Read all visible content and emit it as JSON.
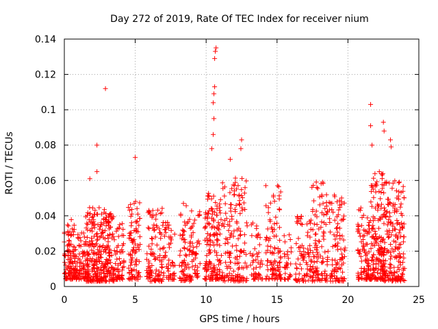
{
  "chart_data": {
    "type": "scatter",
    "title": "Day 272 of 2019, Rate Of TEC Index for receiver nium",
    "xlabel": "GPS time / hours",
    "ylabel": "ROTI / TECUs",
    "xlim": [
      0,
      25
    ],
    "ylim": [
      0,
      0.14
    ],
    "xticks": [
      0,
      5,
      10,
      15,
      20,
      25
    ],
    "xtick_labels": [
      "0",
      "5",
      "10",
      "15",
      "20",
      "25"
    ],
    "yticks": [
      0,
      0.02,
      0.04,
      0.06,
      0.08,
      0.1,
      0.12,
      0.14
    ],
    "ytick_labels": [
      "0",
      "0.02",
      "0.04",
      "0.06",
      "0.08",
      "0.1",
      "0.12",
      "0.14"
    ],
    "grid": true,
    "marker": "+",
    "color": "#ff0000",
    "series": [
      {
        "name": "ROTI",
        "clusters": [
          {
            "x_range": [
              0.0,
              0.8
            ],
            "y_range": [
              0.004,
              0.038
            ],
            "count": 110
          },
          {
            "x_range": [
              0.8,
              1.5
            ],
            "y_range": [
              0.004,
              0.032
            ],
            "count": 70
          },
          {
            "x_range": [
              1.5,
              2.6
            ],
            "y_range": [
              0.003,
              0.045
            ],
            "count": 180
          },
          {
            "x_range": [
              2.6,
              3.5
            ],
            "y_range": [
              0.003,
              0.044
            ],
            "count": 140
          },
          {
            "x_range": [
              3.5,
              4.2
            ],
            "y_range": [
              0.004,
              0.036
            ],
            "count": 60
          },
          {
            "x_range": [
              4.5,
              5.4
            ],
            "y_range": [
              0.004,
              0.05
            ],
            "count": 90
          },
          {
            "x_range": [
              5.8,
              6.9
            ],
            "y_range": [
              0.003,
              0.045
            ],
            "count": 100
          },
          {
            "x_range": [
              6.9,
              7.8
            ],
            "y_range": [
              0.004,
              0.038
            ],
            "count": 60
          },
          {
            "x_range": [
              8.1,
              9.0
            ],
            "y_range": [
              0.003,
              0.048
            ],
            "count": 80
          },
          {
            "x_range": [
              9.0,
              9.6
            ],
            "y_range": [
              0.005,
              0.045
            ],
            "count": 40
          },
          {
            "x_range": [
              9.9,
              11.1
            ],
            "y_range": [
              0.004,
              0.055
            ],
            "count": 150
          },
          {
            "x_range": [
              11.1,
              12.9
            ],
            "y_range": [
              0.003,
              0.062
            ],
            "count": 160
          },
          {
            "x_range": [
              13.1,
              14.0
            ],
            "y_range": [
              0.004,
              0.036
            ],
            "count": 50
          },
          {
            "x_range": [
              14.2,
              15.3
            ],
            "y_range": [
              0.004,
              0.058
            ],
            "count": 100
          },
          {
            "x_range": [
              15.5,
              16.0
            ],
            "y_range": [
              0.004,
              0.03
            ],
            "count": 30
          },
          {
            "x_range": [
              16.3,
              17.4
            ],
            "y_range": [
              0.003,
              0.04
            ],
            "count": 80
          },
          {
            "x_range": [
              17.4,
              18.5
            ],
            "y_range": [
              0.003,
              0.06
            ],
            "count": 100
          },
          {
            "x_range": [
              18.5,
              19.8
            ],
            "y_range": [
              0.003,
              0.055
            ],
            "count": 110
          },
          {
            "x_range": [
              20.7,
              21.6
            ],
            "y_range": [
              0.004,
              0.045
            ],
            "count": 100
          },
          {
            "x_range": [
              21.6,
              22.5
            ],
            "y_range": [
              0.004,
              0.065
            ],
            "count": 160
          },
          {
            "x_range": [
              22.5,
              24.0
            ],
            "y_range": [
              0.003,
              0.06
            ],
            "count": 200
          }
        ],
        "notable_points": [
          {
            "x": 2.9,
            "y": 0.112
          },
          {
            "x": 2.3,
            "y": 0.08
          },
          {
            "x": 2.3,
            "y": 0.065
          },
          {
            "x": 1.8,
            "y": 0.061
          },
          {
            "x": 5.0,
            "y": 0.073
          },
          {
            "x": 10.4,
            "y": 0.078
          },
          {
            "x": 10.5,
            "y": 0.086
          },
          {
            "x": 10.55,
            "y": 0.095
          },
          {
            "x": 10.5,
            "y": 0.104
          },
          {
            "x": 10.55,
            "y": 0.109
          },
          {
            "x": 10.6,
            "y": 0.113
          },
          {
            "x": 10.6,
            "y": 0.129
          },
          {
            "x": 10.65,
            "y": 0.133
          },
          {
            "x": 10.7,
            "y": 0.135
          },
          {
            "x": 12.5,
            "y": 0.083
          },
          {
            "x": 12.45,
            "y": 0.078
          },
          {
            "x": 11.7,
            "y": 0.072
          },
          {
            "x": 21.6,
            "y": 0.103
          },
          {
            "x": 21.6,
            "y": 0.091
          },
          {
            "x": 22.5,
            "y": 0.093
          },
          {
            "x": 22.55,
            "y": 0.088
          },
          {
            "x": 21.7,
            "y": 0.08
          },
          {
            "x": 23.0,
            "y": 0.083
          },
          {
            "x": 23.05,
            "y": 0.079
          }
        ]
      }
    ]
  }
}
